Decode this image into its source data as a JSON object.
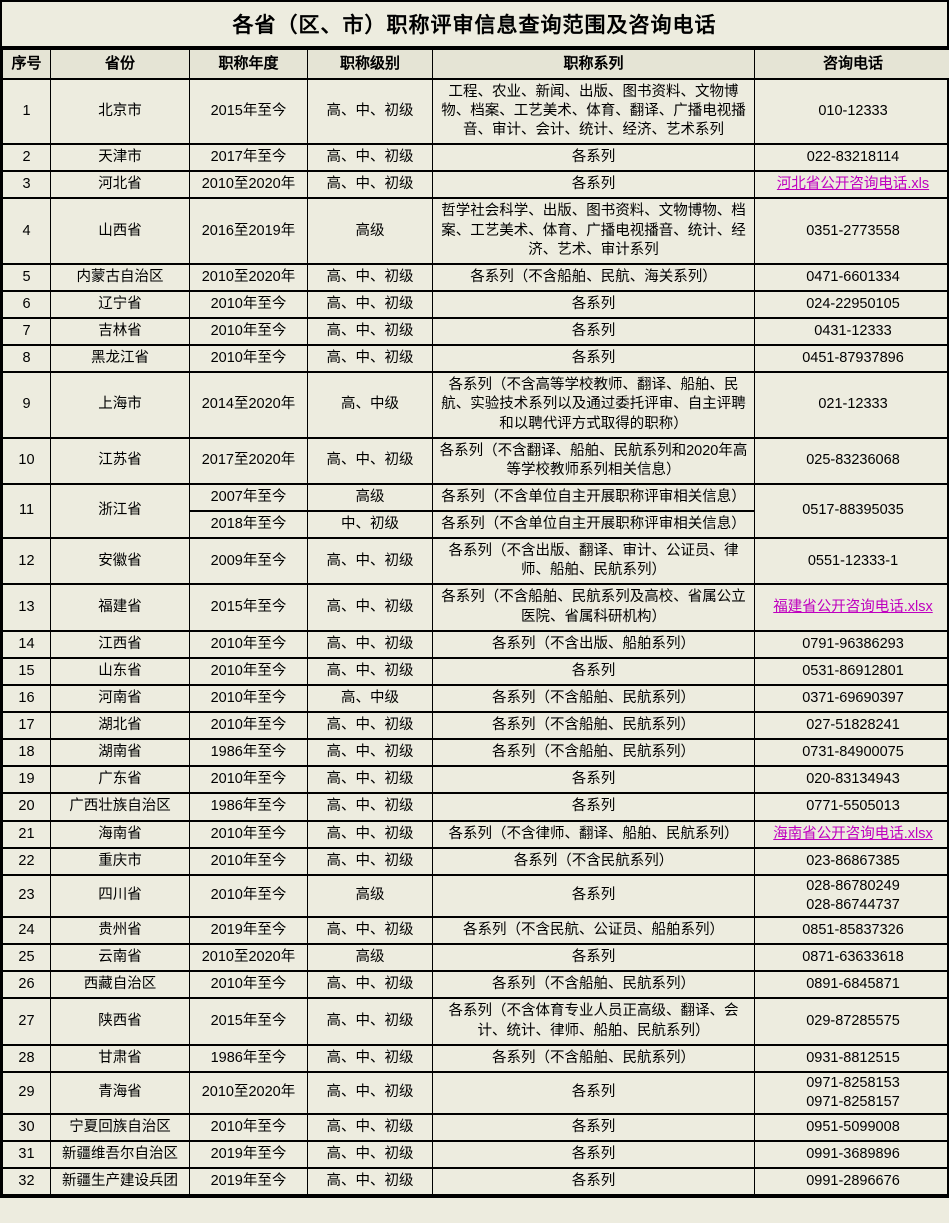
{
  "title": "各省（区、市）职称评审信息查询范围及咨询电话",
  "colors": {
    "background": "#edecdf",
    "header_background": "#e5e4d5",
    "border": "#000000",
    "text": "#000000",
    "link": "#bf00bf"
  },
  "table": {
    "columns": [
      "序号",
      "省份",
      "职称年度",
      "职称级别",
      "职称系列",
      "咨询电话"
    ],
    "rows": [
      {
        "no": "1",
        "province": "北京市",
        "year": "2015年至今",
        "level": "高、中、初级",
        "series": "工程、农业、新闻、出版、图书资料、文物博物、档案、工艺美术、体育、翻译、广播电视播音、审计、会计、统计、经济、艺术系列",
        "phone": "010-12333"
      },
      {
        "no": "2",
        "province": "天津市",
        "year": "2017年至今",
        "level": "高、中、初级",
        "series": "各系列",
        "phone": "022-83218114"
      },
      {
        "no": "3",
        "province": "河北省",
        "year": "2010至2020年",
        "level": "高、中、初级",
        "series": "各系列",
        "phone_link": "河北省公开咨询电话.xls"
      },
      {
        "no": "4",
        "province": "山西省",
        "year": "2016至2019年",
        "level": "高级",
        "series": "哲学社会科学、出版、图书资料、文物博物、档案、工艺美术、体育、广播电视播音、统计、经济、艺术、审计系列",
        "phone": "0351-2773558"
      },
      {
        "no": "5",
        "province": "内蒙古自治区",
        "year": "2010至2020年",
        "level": "高、中、初级",
        "series": "各系列（不含船舶、民航、海关系列）",
        "phone": "0471-6601334"
      },
      {
        "no": "6",
        "province": "辽宁省",
        "year": "2010年至今",
        "level": "高、中、初级",
        "series": "各系列",
        "phone": "024-22950105"
      },
      {
        "no": "7",
        "province": "吉林省",
        "year": "2010年至今",
        "level": "高、中、初级",
        "series": "各系列",
        "phone": "0431-12333"
      },
      {
        "no": "8",
        "province": "黑龙江省",
        "year": "2010年至今",
        "level": "高、中、初级",
        "series": "各系列",
        "phone": "0451-87937896"
      },
      {
        "no": "9",
        "province": "上海市",
        "year": "2014至2020年",
        "level": "高、中级",
        "series": "各系列（不含高等学校教师、翻译、船舶、民航、实验技术系列以及通过委托评审、自主评聘和以聘代评方式取得的职称）",
        "phone": "021-12333"
      },
      {
        "no": "10",
        "province": "江苏省",
        "year": "2017至2020年",
        "level": "高、中、初级",
        "series": "各系列（不含翻译、船舶、民航系列和2020年高等学校教师系列相关信息）",
        "phone": "025-83236068"
      },
      {
        "no": "11",
        "province": "浙江省",
        "phone": "0517-88395035",
        "subrows": [
          {
            "year": "2007年至今",
            "level": "高级",
            "series": "各系列（不含单位自主开展职称评审相关信息）"
          },
          {
            "year": "2018年至今",
            "level": "中、初级",
            "series": "各系列（不含单位自主开展职称评审相关信息）"
          }
        ]
      },
      {
        "no": "12",
        "province": "安徽省",
        "year": "2009年至今",
        "level": "高、中、初级",
        "series": "各系列（不含出版、翻译、审计、公证员、律师、船舶、民航系列）",
        "phone": "0551-12333-1"
      },
      {
        "no": "13",
        "province": "福建省",
        "year": "2015年至今",
        "level": "高、中、初级",
        "series": "各系列（不含船舶、民航系列及高校、省属公立医院、省属科研机构）",
        "phone_link": "福建省公开咨询电话.xlsx"
      },
      {
        "no": "14",
        "province": "江西省",
        "year": "2010年至今",
        "level": "高、中、初级",
        "series": "各系列（不含出版、船舶系列）",
        "phone": "0791-96386293"
      },
      {
        "no": "15",
        "province": "山东省",
        "year": "2010年至今",
        "level": "高、中、初级",
        "series": "各系列",
        "phone": "0531-86912801"
      },
      {
        "no": "16",
        "province": "河南省",
        "year": "2010年至今",
        "level": "高、中级",
        "series": "各系列（不含船舶、民航系列）",
        "phone": "0371-69690397"
      },
      {
        "no": "17",
        "province": "湖北省",
        "year": "2010年至今",
        "level": "高、中、初级",
        "series": "各系列（不含船舶、民航系列）",
        "phone": "027-51828241"
      },
      {
        "no": "18",
        "province": "湖南省",
        "year": "1986年至今",
        "level": "高、中、初级",
        "series": "各系列（不含船舶、民航系列）",
        "phone": "0731-84900075"
      },
      {
        "no": "19",
        "province": "广东省",
        "year": "2010年至今",
        "level": "高、中、初级",
        "series": "各系列",
        "phone": "020-83134943"
      },
      {
        "no": "20",
        "province": "广西壮族自治区",
        "year": "1986年至今",
        "level": "高、中、初级",
        "series": "各系列",
        "phone": "0771-5505013"
      },
      {
        "no": "21",
        "province": "海南省",
        "year": "2010年至今",
        "level": "高、中、初级",
        "series": "各系列（不含律师、翻译、船舶、民航系列）",
        "phone_link": "海南省公开咨询电话.xlsx"
      },
      {
        "no": "22",
        "province": "重庆市",
        "year": "2010年至今",
        "level": "高、中、初级",
        "series": "各系列（不含民航系列）",
        "phone": "023-86867385"
      },
      {
        "no": "23",
        "province": "四川省",
        "year": "2010年至今",
        "level": "高级",
        "series": "各系列",
        "phone": "028-86780249\n028-86744737"
      },
      {
        "no": "24",
        "province": "贵州省",
        "year": "2019年至今",
        "level": "高、中、初级",
        "series": "各系列（不含民航、公证员、船舶系列）",
        "phone": "0851-85837326"
      },
      {
        "no": "25",
        "province": "云南省",
        "year": "2010至2020年",
        "level": "高级",
        "series": "各系列",
        "phone": "0871-63633618"
      },
      {
        "no": "26",
        "province": "西藏自治区",
        "year": "2010年至今",
        "level": "高、中、初级",
        "series": "各系列（不含船舶、民航系列）",
        "phone": "0891-6845871"
      },
      {
        "no": "27",
        "province": "陕西省",
        "year": "2015年至今",
        "level": "高、中、初级",
        "series": "各系列（不含体育专业人员正高级、翻译、会计、统计、律师、船舶、民航系列）",
        "phone": "029-87285575"
      },
      {
        "no": "28",
        "province": "甘肃省",
        "year": "1986年至今",
        "level": "高、中、初级",
        "series": "各系列（不含船舶、民航系列）",
        "phone": "0931-8812515"
      },
      {
        "no": "29",
        "province": "青海省",
        "year": "2010至2020年",
        "level": "高、中、初级",
        "series": "各系列",
        "phone": "0971-8258153\n0971-8258157"
      },
      {
        "no": "30",
        "province": "宁夏回族自治区",
        "year": "2010年至今",
        "level": "高、中、初级",
        "series": "各系列",
        "phone": "0951-5099008"
      },
      {
        "no": "31",
        "province": "新疆维吾尔自治区",
        "year": "2019年至今",
        "level": "高、中、初级",
        "series": "各系列",
        "phone": "0991-3689896"
      },
      {
        "no": "32",
        "province": "新疆生产建设兵团",
        "year": "2019年至今",
        "level": "高、中、初级",
        "series": "各系列",
        "phone": "0991-2896676"
      }
    ]
  }
}
